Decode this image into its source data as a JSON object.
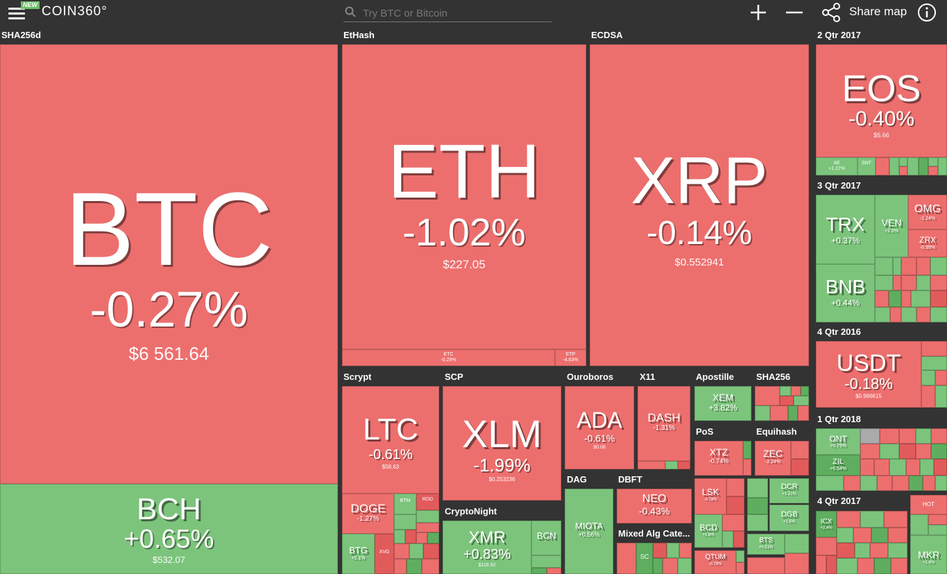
{
  "header": {
    "menu_icon": "hamburger-icon",
    "new_badge": "NEW",
    "logo": "COIN360°",
    "search_placeholder": "Try BTC or Bitcoin",
    "zoom_in_icon": "plus-icon",
    "zoom_out_icon": "minus-icon",
    "share_icon": "share-icon",
    "share_label": "Share map",
    "info_icon": "info-icon"
  },
  "colors": {
    "down": "#ec6f6e",
    "up": "#7cc47c",
    "background": "#333333"
  },
  "groups": {
    "sha256d": "SHA256d",
    "ethash": "EtHash",
    "ecdsa": "ECDSA",
    "q2_2017": "2 Qtr 2017",
    "q3_2017": "3 Qtr 2017",
    "q4_2016": "4 Qtr 2016",
    "q1_2018": "1 Qtr 2018",
    "q4_2017": "4 Qtr 2017",
    "scrypt": "Scrypt",
    "scp": "SCP",
    "ouroboros": "Ouroboros",
    "x11": "X11",
    "apostille": "Apostille",
    "sha256": "SHA256",
    "pos": "PoS",
    "equihash": "Equihash",
    "cryptonight": "CryptoNight",
    "dag": "DAG",
    "dbft": "DBFT",
    "mixed": "Mixed Alg Cate..."
  },
  "coins": {
    "btc": {
      "symbol": "BTC",
      "change": "-0.27%",
      "price": "$6 561.64"
    },
    "bch": {
      "symbol": "BCH",
      "change": "+0.65%",
      "price": "$532.07"
    },
    "eth": {
      "symbol": "ETH",
      "change": "-1.02%",
      "price": "$227.05"
    },
    "etc": {
      "symbol": "ETC",
      "change": "-0.29%"
    },
    "etp": {
      "symbol": "ETP",
      "change": "-4.63%"
    },
    "xrp": {
      "symbol": "XRP",
      "change": "-0.14%",
      "price": "$0.552941"
    },
    "eos": {
      "symbol": "EOS",
      "change": "-0.40%",
      "price": "$5.66"
    },
    "ae": {
      "symbol": "AE",
      "change": "+1.27%"
    },
    "snt": {
      "symbol": "SNT"
    },
    "trx": {
      "symbol": "TRX",
      "change": "+0.37%"
    },
    "ven": {
      "symbol": "VEN",
      "change": "+2.0%"
    },
    "omg": {
      "symbol": "OMG",
      "change": "-1.24%"
    },
    "zrx": {
      "symbol": "ZRX",
      "change": "-0.99%"
    },
    "bnb": {
      "symbol": "BNB",
      "change": "+0.44%"
    },
    "usdt": {
      "symbol": "USDT",
      "change": "-0.18%",
      "price": "$0.996615"
    },
    "ont": {
      "symbol": "ONT",
      "change": "+0.79%"
    },
    "zil": {
      "symbol": "ZIL",
      "change": "+6.54%"
    },
    "icx": {
      "symbol": "ICX",
      "change": "+2.4%"
    },
    "hot": {
      "symbol": "HOT"
    },
    "mkr": {
      "symbol": "MKR",
      "change": "+1.4%"
    },
    "ltc": {
      "symbol": "LTC",
      "change": "-0.61%",
      "price": "$58.63"
    },
    "doge": {
      "symbol": "DOGE",
      "change": "-1.27%"
    },
    "btm": {
      "symbol": "BTM"
    },
    "rdd": {
      "symbol": "RDD"
    },
    "btg": {
      "symbol": "BTG",
      "change": "+2.1%"
    },
    "xvg": {
      "symbol": "XVG"
    },
    "xlm": {
      "symbol": "XLM",
      "change": "-1.99%",
      "price": "$0.253236"
    },
    "xmr": {
      "symbol": "XMR",
      "change": "+0.83%",
      "price": "$116.92"
    },
    "bcn": {
      "symbol": "BCN"
    },
    "ada": {
      "symbol": "ADA",
      "change": "-0.61%",
      "price": "$0.08"
    },
    "dash": {
      "symbol": "DASH",
      "change": "-1.31%"
    },
    "xem": {
      "symbol": "XEM",
      "change": "+3.82%"
    },
    "xtz": {
      "symbol": "XTZ",
      "change": "-0.74%"
    },
    "zec": {
      "symbol": "ZEC",
      "change": "-2.24%"
    },
    "lsk": {
      "symbol": "LSK",
      "change": "-0.78%"
    },
    "dcr": {
      "symbol": "DCR",
      "change": "+1.21%"
    },
    "dgb": {
      "symbol": "DGB",
      "change": "+1.5%"
    },
    "bcd": {
      "symbol": "BCD",
      "change": "+1.6%"
    },
    "bts": {
      "symbol": "BTS",
      "change": "+0.51%"
    },
    "qtum": {
      "symbol": "QTUM",
      "change": "-0.78%"
    },
    "miota": {
      "symbol": "MIOTA",
      "change": "+0.56%"
    },
    "neo": {
      "symbol": "NEO",
      "change": "-0.43%"
    },
    "sc": {
      "symbol": "SC"
    }
  }
}
